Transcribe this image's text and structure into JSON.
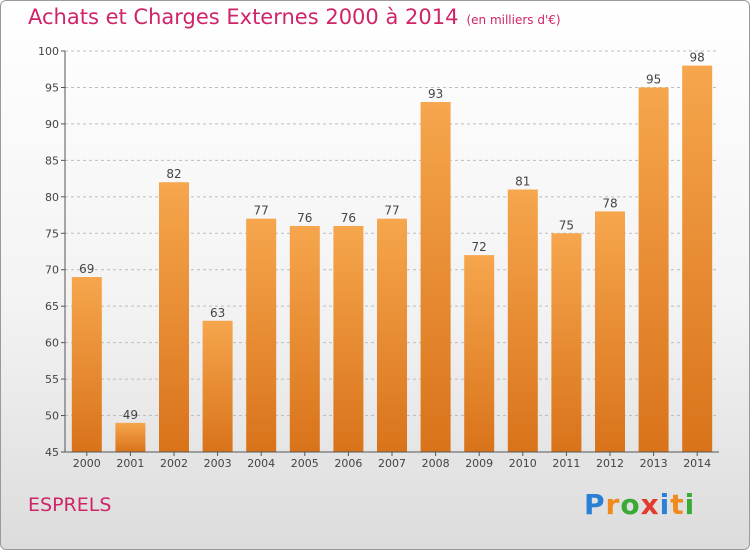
{
  "title": "Achats et Charges Externes 2000 à 2014",
  "unit": "(en milliers d'€)",
  "commune": "ESPRELS",
  "logo": {
    "letters": [
      "P",
      "r",
      "o",
      "x",
      "i",
      "t",
      "i"
    ],
    "colors": [
      "#2a7fd6",
      "#f08a1c",
      "#3aaa35",
      "#e23b2e",
      "#2a7fd6",
      "#f08a1c",
      "#3aaa35"
    ]
  },
  "colors": {
    "bar_top": "#f6a64d",
    "bar_bottom": "#d9731a",
    "title": "#d0246a"
  },
  "chart_data": {
    "type": "bar",
    "title": "Achats et Charges Externes 2000 à 2014",
    "subtitle": "(en milliers d'€)",
    "categories": [
      "2000",
      "2001",
      "2002",
      "2003",
      "2004",
      "2005",
      "2006",
      "2007",
      "2008",
      "2009",
      "2010",
      "2011",
      "2012",
      "2013",
      "2014"
    ],
    "values": [
      69,
      49,
      82,
      63,
      77,
      76,
      76,
      77,
      93,
      72,
      81,
      75,
      78,
      95,
      98
    ],
    "ylim": [
      45,
      100
    ],
    "yticks": [
      45,
      50,
      55,
      60,
      65,
      70,
      75,
      80,
      85,
      90,
      95,
      100
    ],
    "grid": "horizontal dashed",
    "data_labels": true
  }
}
